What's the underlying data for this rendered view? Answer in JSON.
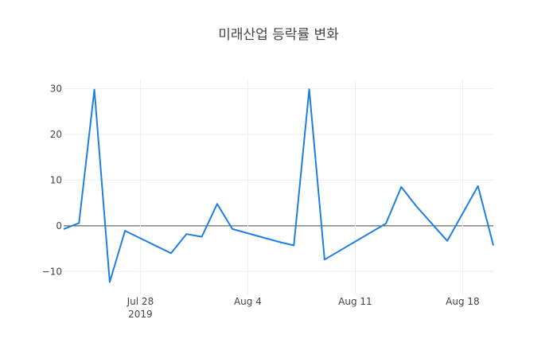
{
  "chart_data": {
    "type": "line",
    "title": "미래산업 등락률 변화",
    "xlabel": "",
    "ylabel": "",
    "xlim": [
      "2019-07-23",
      "2019-08-20"
    ],
    "ylim": [
      -15,
      32
    ],
    "grid": true,
    "legend": "none",
    "x_ticks": [
      {
        "date": "2019-07-28",
        "label": "Jul 28",
        "sublabel": "2019"
      },
      {
        "date": "2019-08-04",
        "label": "Aug 4"
      },
      {
        "date": "2019-08-11",
        "label": "Aug 11"
      },
      {
        "date": "2019-08-18",
        "label": "Aug 18"
      }
    ],
    "y_ticks": [
      30,
      20,
      10,
      0,
      -10
    ],
    "y_tick_labels": [
      "30",
      "20",
      "10",
      "0",
      "−10"
    ],
    "series": [
      {
        "color": "#1f7fe0",
        "x": [
          "2019-07-23",
          "2019-07-24",
          "2019-07-25",
          "2019-07-26",
          "2019-07-27",
          "2019-07-30",
          "2019-07-31",
          "2019-08-01",
          "2019-08-02",
          "2019-08-03",
          "2019-08-06",
          "2019-08-07",
          "2019-08-08",
          "2019-08-09",
          "2019-08-13",
          "2019-08-14",
          "2019-08-15",
          "2019-08-17",
          "2019-08-19",
          "2019-08-20"
        ],
        "y": [
          -0.7,
          0.6,
          29.8,
          -12.3,
          -1.1,
          -6.0,
          -1.8,
          -2.4,
          4.8,
          -0.7,
          -3.5,
          -4.3,
          29.9,
          -7.4,
          0.5,
          8.5,
          4.2,
          -3.3,
          8.7,
          -4.3
        ]
      }
    ]
  }
}
